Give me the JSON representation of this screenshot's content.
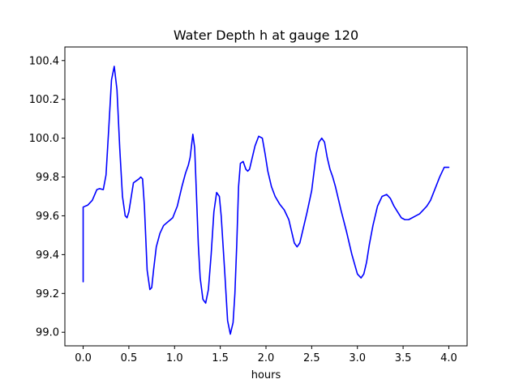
{
  "chart_data": {
    "type": "line",
    "title": "Water Depth h at gauge 120",
    "xlabel": "hours",
    "ylabel": "",
    "xlim": [
      -0.2,
      4.2
    ],
    "ylim": [
      98.93,
      100.47
    ],
    "xticks": [
      0.0,
      0.5,
      1.0,
      1.5,
      2.0,
      2.5,
      3.0,
      3.5,
      4.0
    ],
    "xtick_labels": [
      "0.0",
      "0.5",
      "1.0",
      "1.5",
      "2.0",
      "2.5",
      "3.0",
      "3.5",
      "4.0"
    ],
    "yticks": [
      99.0,
      99.2,
      99.4,
      99.6,
      99.8,
      100.0,
      100.2,
      100.4
    ],
    "ytick_labels": [
      "99.0",
      "99.2",
      "99.4",
      "99.6",
      "99.8",
      "100.0",
      "100.2",
      "100.4"
    ],
    "grid": false,
    "legend": "none",
    "series": [
      {
        "color": "#0000ff",
        "x": [
          0.0,
          0.0,
          0.05,
          0.1,
          0.15,
          0.18,
          0.22,
          0.25,
          0.28,
          0.31,
          0.34,
          0.37,
          0.4,
          0.43,
          0.46,
          0.48,
          0.5,
          0.52,
          0.55,
          0.58,
          0.61,
          0.63,
          0.65,
          0.67,
          0.7,
          0.73,
          0.75,
          0.77,
          0.8,
          0.84,
          0.88,
          0.93,
          0.98,
          1.03,
          1.08,
          1.12,
          1.15,
          1.17,
          1.2,
          1.22,
          1.24,
          1.26,
          1.28,
          1.31,
          1.34,
          1.37,
          1.4,
          1.43,
          1.46,
          1.49,
          1.51,
          1.53,
          1.55,
          1.58,
          1.61,
          1.64,
          1.66,
          1.68,
          1.7,
          1.72,
          1.75,
          1.78,
          1.8,
          1.82,
          1.85,
          1.88,
          1.92,
          1.96,
          1.99,
          2.02,
          2.06,
          2.1,
          2.15,
          2.2,
          2.25,
          2.28,
          2.31,
          2.34,
          2.37,
          2.4,
          2.45,
          2.5,
          2.55,
          2.58,
          2.61,
          2.64,
          2.67,
          2.7,
          2.73,
          2.76,
          2.82,
          2.88,
          2.94,
          3.0,
          3.04,
          3.07,
          3.1,
          3.13,
          3.17,
          3.22,
          3.27,
          3.32,
          3.36,
          3.4,
          3.44,
          3.48,
          3.52,
          3.56,
          3.6,
          3.64,
          3.68,
          3.72,
          3.76,
          3.8,
          3.85,
          3.9,
          3.95,
          4.0
        ],
        "y": [
          99.26,
          99.645,
          99.655,
          99.68,
          99.735,
          99.74,
          99.735,
          99.81,
          100.05,
          100.3,
          100.37,
          100.25,
          99.95,
          99.7,
          99.6,
          99.59,
          99.62,
          99.68,
          99.77,
          99.78,
          99.79,
          99.8,
          99.79,
          99.65,
          99.32,
          99.22,
          99.23,
          99.32,
          99.44,
          99.51,
          99.55,
          99.57,
          99.59,
          99.65,
          99.75,
          99.82,
          99.86,
          99.9,
          100.02,
          99.95,
          99.7,
          99.45,
          99.28,
          99.17,
          99.15,
          99.22,
          99.4,
          99.62,
          99.72,
          99.7,
          99.6,
          99.45,
          99.3,
          99.06,
          98.99,
          99.05,
          99.2,
          99.45,
          99.75,
          99.87,
          99.88,
          99.84,
          99.83,
          99.84,
          99.9,
          99.96,
          100.01,
          100.0,
          99.92,
          99.83,
          99.75,
          99.7,
          99.66,
          99.63,
          99.58,
          99.52,
          99.46,
          99.44,
          99.46,
          99.52,
          99.62,
          99.73,
          99.92,
          99.98,
          100.0,
          99.98,
          99.9,
          99.84,
          99.8,
          99.75,
          99.63,
          99.52,
          99.4,
          99.3,
          99.28,
          99.3,
          99.36,
          99.45,
          99.55,
          99.65,
          99.7,
          99.71,
          99.69,
          99.65,
          99.62,
          99.59,
          99.58,
          99.58,
          99.59,
          99.6,
          99.61,
          99.63,
          99.65,
          99.68,
          99.74,
          99.8,
          99.85,
          99.85
        ]
      }
    ]
  }
}
